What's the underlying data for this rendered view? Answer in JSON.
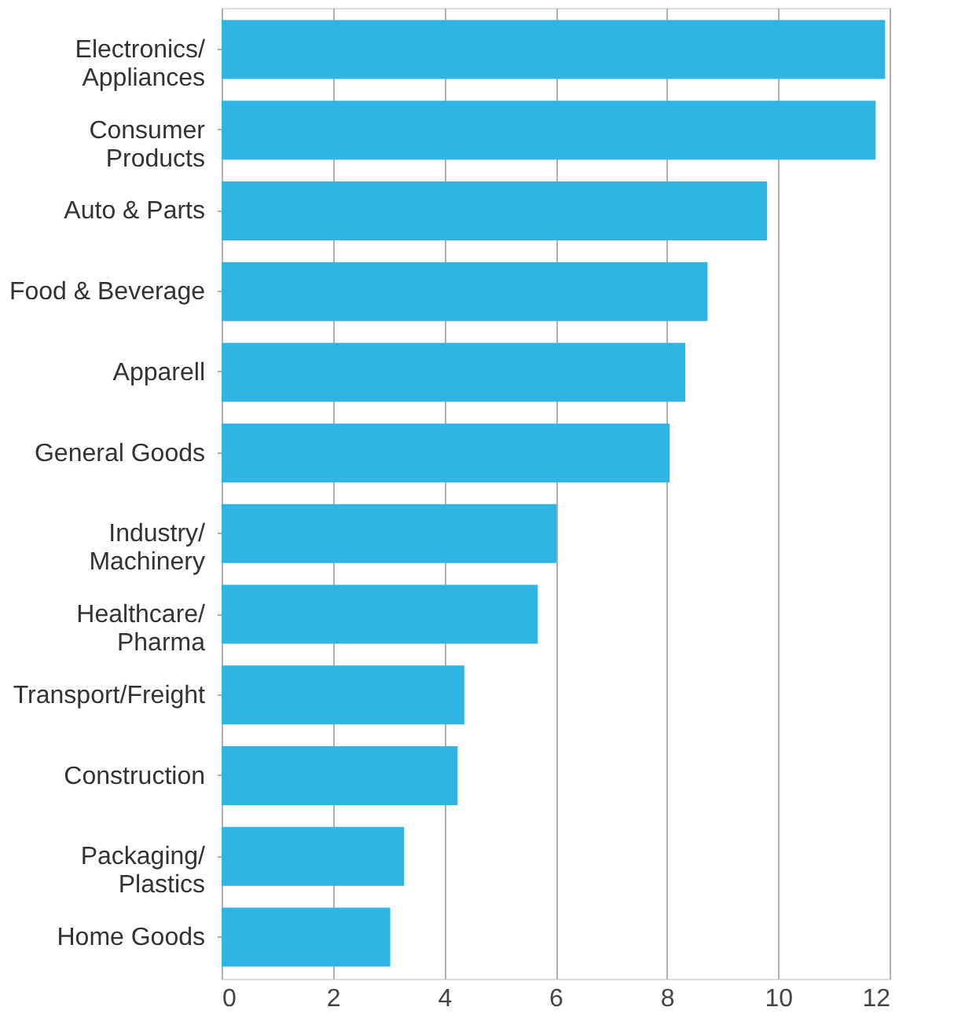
{
  "chart_data": {
    "type": "bar",
    "orientation": "horizontal",
    "categories": [
      "Electronics/\nAppliances",
      "Consumer\nProducts",
      "Auto & Parts",
      "Food & Beverage",
      "Apparell",
      "General Goods",
      "Industry/\nMachinery",
      "Healthcare/\nPharma",
      "Transport/Freight",
      "Construction",
      "Packaging/\nPlastics",
      "Home Goods"
    ],
    "values": [
      11.92,
      11.75,
      9.8,
      8.73,
      8.33,
      8.05,
      6.02,
      5.68,
      4.36,
      4.24,
      3.28,
      3.03
    ],
    "color": "#2eb5e4",
    "xlim": [
      0,
      12
    ],
    "xticks": [
      0,
      2,
      4,
      6,
      8,
      10,
      12
    ],
    "grid": "x"
  }
}
